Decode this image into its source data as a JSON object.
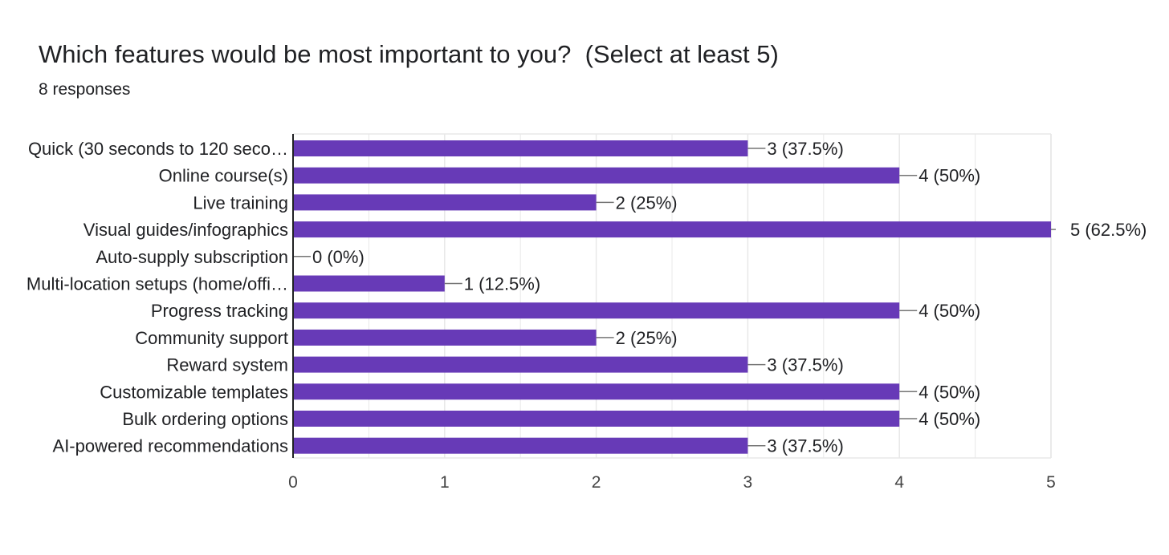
{
  "header": {
    "title": "Which features would be most important to you?  (Select at least 5)",
    "responses": "8 responses"
  },
  "colors": {
    "bar": "#673ab7",
    "grid": "#e8e8e8",
    "axis": "#202124",
    "leader": "#757575"
  },
  "chart_data": {
    "type": "bar",
    "orientation": "horizontal",
    "title": "Which features would be most important to you?  (Select at least 5)",
    "subtitle": "8 responses",
    "categories": [
      "Quick (30 seconds to 120 seco…",
      "Online course(s)",
      "Live training",
      "Visual guides/infographics",
      "Auto-supply subscription",
      "Multi-location setups (home/offi…",
      "Progress tracking",
      "Community support",
      "Reward system",
      "Customizable templates",
      "Bulk ordering options",
      "AI-powered recommendations"
    ],
    "values": [
      3,
      4,
      2,
      5,
      0,
      1,
      4,
      2,
      3,
      4,
      4,
      3
    ],
    "data_labels": [
      "3 (37.5%)",
      "4 (50%)",
      "2 (25%)",
      "5 (62.5%)",
      "0 (0%)",
      "1 (12.5%)",
      "4 (50%)",
      "2 (25%)",
      "3 (37.5%)",
      "4 (50%)",
      "4 (50%)",
      "3 (37.5%)"
    ],
    "xlim": [
      0,
      5
    ],
    "ticks": [
      "0",
      "1",
      "2",
      "3",
      "4",
      "5"
    ],
    "grid": true,
    "legend": "none"
  }
}
